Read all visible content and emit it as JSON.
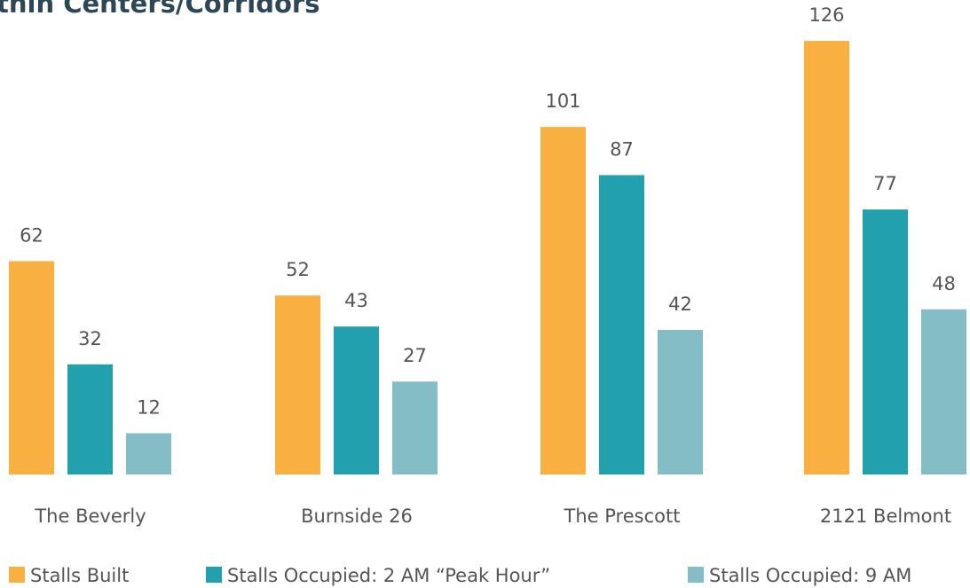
{
  "chart_data": {
    "type": "bar",
    "title": "thin Centers/Corridors",
    "categories": [
      "The Beverly",
      "Burnside 26",
      "The Prescott",
      "2121 Belmont"
    ],
    "series": [
      {
        "name": "Stalls Built",
        "color": "#f9b041",
        "values": [
          62,
          52,
          101,
          126
        ]
      },
      {
        "name": "Stalls Occupied: 2 AM “Peak Hour”",
        "color": "#22a0ae",
        "values": [
          32,
          43,
          87,
          77
        ]
      },
      {
        "name": "Stalls Occupied: 9 AM",
        "color": "#85bdc7",
        "values": [
          12,
          27,
          42,
          48
        ]
      }
    ]
  }
}
